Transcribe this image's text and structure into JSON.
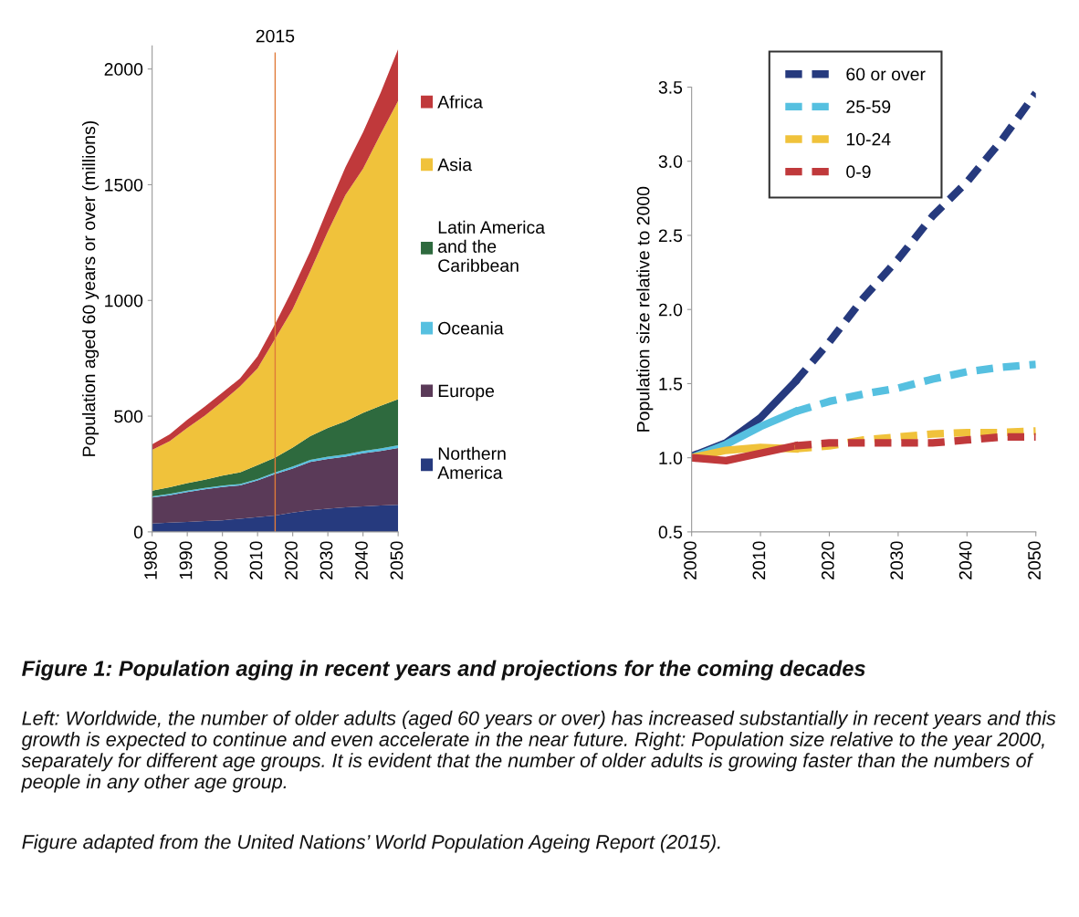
{
  "chart_data": [
    {
      "type": "area",
      "stacked": true,
      "ylabel": "Population aged 60 years or over (millions)",
      "x": [
        1980,
        1985,
        1990,
        1995,
        2000,
        2005,
        2010,
        2015,
        2020,
        2025,
        2030,
        2035,
        2040,
        2045,
        2050
      ],
      "series": [
        {
          "name": "Northern America",
          "color": "#263a7e",
          "values": [
            36,
            40,
            43,
            47,
            50,
            57,
            64,
            71,
            83,
            93,
            100,
            106,
            110,
            114,
            117
          ]
        },
        {
          "name": "Europe",
          "color": "#5a3a58",
          "values": [
            112,
            118,
            129,
            137,
            144,
            144,
            158,
            179,
            191,
            209,
            215,
            219,
            230,
            236,
            245
          ]
        },
        {
          "name": "Oceania",
          "color": "#56c0e0",
          "values": [
            5,
            6,
            6,
            6,
            6,
            6,
            6,
            7,
            8,
            9,
            10,
            10,
            10,
            10,
            12
          ]
        },
        {
          "name": "Latin America and the Caribbean",
          "color": "#2e6a3e",
          "values": [
            25,
            29,
            33,
            35,
            43,
            50,
            60,
            64,
            82,
            103,
            124,
            143,
            164,
            185,
            199
          ]
        },
        {
          "name": "Asia",
          "color": "#f0c23b",
          "values": [
            176,
            199,
            238,
            277,
            320,
            371,
            418,
            513,
            599,
            713,
            849,
            977,
            1055,
            1174,
            1289
          ]
        },
        {
          "name": "Africa",
          "color": "#c0393b",
          "values": [
            24,
            29,
            36,
            40,
            39,
            35,
            53,
            65,
            86,
            86,
            100,
            121,
            157,
            178,
            224
          ]
        }
      ],
      "xlim": [
        1980,
        2050
      ],
      "xticks": [
        1980,
        1990,
        2000,
        2010,
        2020,
        2030,
        2040,
        2050
      ],
      "ylim": [
        0,
        2100
      ],
      "yticks": [
        0,
        500,
        1000,
        1500,
        2000
      ],
      "ref_lines": [
        {
          "axis": "x",
          "value": 2015,
          "label": "2015",
          "color": "#e07b39"
        }
      ],
      "legend": "right",
      "grid": false,
      "annotations": [
        "Figure 1: Population aging in recent years and projections for the coming decades",
        "Left: Worldwide, the number of older adults (aged 60 years or over) has increased substantially in recent years and this growth is expected to continue and even accelerate in the near future. Right: Population size relative to the year 2000, separately for different age groups. It is evident that the number of older adults is growing faster than the numbers of people in any other age group.",
        "Figure adapted from the United Nations’ World Population Ageing Report (2015)."
      ]
    },
    {
      "type": "line",
      "ylabel": "Population size relative to 2000",
      "series": [
        {
          "color": "#263a7e",
          "line_style": "solid",
          "x": [
            2000,
            2005,
            2010,
            2015
          ],
          "values": [
            1.01,
            1.1,
            1.27,
            1.51
          ]
        },
        {
          "color": "#56c0e0",
          "line_style": "solid",
          "x": [
            2000,
            2005,
            2010,
            2015
          ],
          "values": [
            1.0,
            1.09,
            1.21,
            1.31
          ]
        },
        {
          "color": "#f0c23b",
          "line_style": "solid",
          "x": [
            2000,
            2005,
            2010,
            2015
          ],
          "values": [
            1.0,
            1.05,
            1.07,
            1.06
          ]
        },
        {
          "color": "#c0393b",
          "line_style": "solid",
          "x": [
            2000,
            2005,
            2010,
            2015
          ],
          "values": [
            1.0,
            0.98,
            1.03,
            1.08
          ]
        },
        {
          "name": "60 or over",
          "color": "#263a7e",
          "line_style": "dashed",
          "x": [
            2015,
            2020,
            2025,
            2030,
            2035,
            2040,
            2045,
            2050
          ],
          "values": [
            1.51,
            1.78,
            2.08,
            2.34,
            2.63,
            2.86,
            3.14,
            3.46
          ]
        },
        {
          "name": "25-59",
          "color": "#56c0e0",
          "line_style": "dashed",
          "x": [
            2015,
            2020,
            2025,
            2030,
            2035,
            2040,
            2045,
            2050
          ],
          "values": [
            1.31,
            1.38,
            1.43,
            1.47,
            1.53,
            1.58,
            1.61,
            1.63
          ]
        },
        {
          "name": "10-24",
          "color": "#f0c23b",
          "line_style": "dashed",
          "x": [
            2015,
            2020,
            2025,
            2030,
            2035,
            2040,
            2045,
            2050
          ],
          "values": [
            1.06,
            1.08,
            1.12,
            1.14,
            1.16,
            1.17,
            1.17,
            1.18
          ]
        },
        {
          "name": "0-9",
          "color": "#c0393b",
          "line_style": "dashed",
          "x": [
            2015,
            2020,
            2025,
            2030,
            2035,
            2040,
            2045,
            2050
          ],
          "values": [
            1.08,
            1.1,
            1.1,
            1.1,
            1.1,
            1.12,
            1.14,
            1.14
          ]
        }
      ],
      "xlim": [
        2000,
        2050
      ],
      "xticks": [
        2000,
        2010,
        2020,
        2030,
        2040,
        2050
      ],
      "ylim": [
        0.5,
        3.5
      ],
      "yticks": [
        {
          "value": 0.5,
          "label": "0.5"
        },
        {
          "value": 1,
          "label": "1.0"
        },
        {
          "value": 1.5,
          "label": "1.5"
        },
        {
          "value": 2,
          "label": "2.0"
        },
        {
          "value": 2.5,
          "label": "2.5"
        },
        {
          "value": 3,
          "label": "3.0"
        },
        {
          "value": 3.5,
          "label": "3.5"
        }
      ],
      "legend": "top left",
      "grid": false
    }
  ]
}
